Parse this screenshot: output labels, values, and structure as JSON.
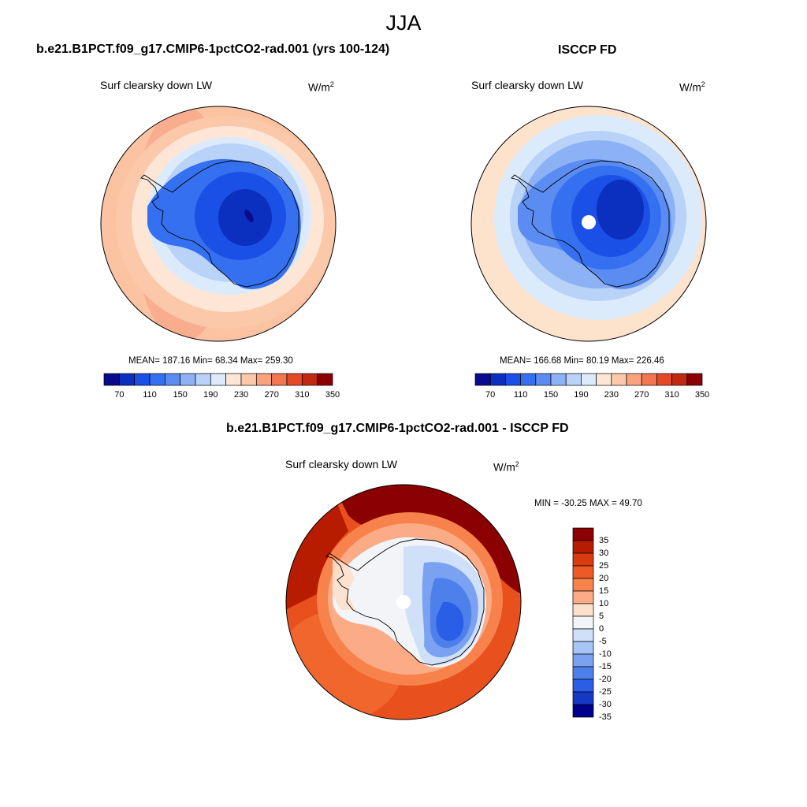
{
  "figure": {
    "season": "JJA",
    "panels": [
      {
        "id": "model",
        "title": "b.e21.B1PCT.f09_g17.CMIP6-1pctCO2-rad.001 (yrs 100-124)",
        "variable": "Surf clearsky down LW",
        "units_base": "W/m",
        "units_exp": "2",
        "stats": "MEAN= 187.16  Min=  68.34  Max= 259.30",
        "colorbar_ticks": [
          "70",
          "110",
          "150",
          "190",
          "230",
          "270",
          "310",
          "350"
        ]
      },
      {
        "id": "obs",
        "title": "ISCCP FD",
        "variable": "Surf clearsky down LW",
        "units_base": "W/m",
        "units_exp": "2",
        "stats": "MEAN= 166.68  Min=  80.19  Max= 226.46",
        "colorbar_ticks": [
          "70",
          "110",
          "150",
          "190",
          "230",
          "270",
          "310",
          "350"
        ]
      },
      {
        "id": "diff",
        "title": "b.e21.B1PCT.f09_g17.CMIP6-1pctCO2-rad.001 - ISCCP FD",
        "variable": "Surf clearsky down LW",
        "units_base": "W/m",
        "units_exp": "2",
        "stats": "MIN = -30.25 MAX =  49.70",
        "colorbar_ticks": [
          "35",
          "30",
          "25",
          "20",
          "15",
          "10",
          "5",
          "0",
          "-5",
          "-10",
          "-15",
          "-20",
          "-25",
          "-30",
          "-35"
        ]
      }
    ]
  },
  "colors": {
    "abs_scale": [
      "#0a0a8c",
      "#0b2fbe",
      "#1a50e6",
      "#3570f0",
      "#5a8cf2",
      "#8cb2f5",
      "#b8d2f8",
      "#dcebfb",
      "#fde6d6",
      "#fbc8aa",
      "#f8a27e",
      "#f27650",
      "#e44a28",
      "#c12a10",
      "#8b0000"
    ],
    "diff_scale": [
      "#8b0000",
      "#b81c00",
      "#d83c10",
      "#ee5a26",
      "#f7824c",
      "#fbac86",
      "#fde0cc",
      "#f2f4f8",
      "#cfe0f8",
      "#a6c4f4",
      "#7aa2f0",
      "#4e80ec",
      "#2a5ee6",
      "#1638c6",
      "#00008c"
    ]
  }
}
